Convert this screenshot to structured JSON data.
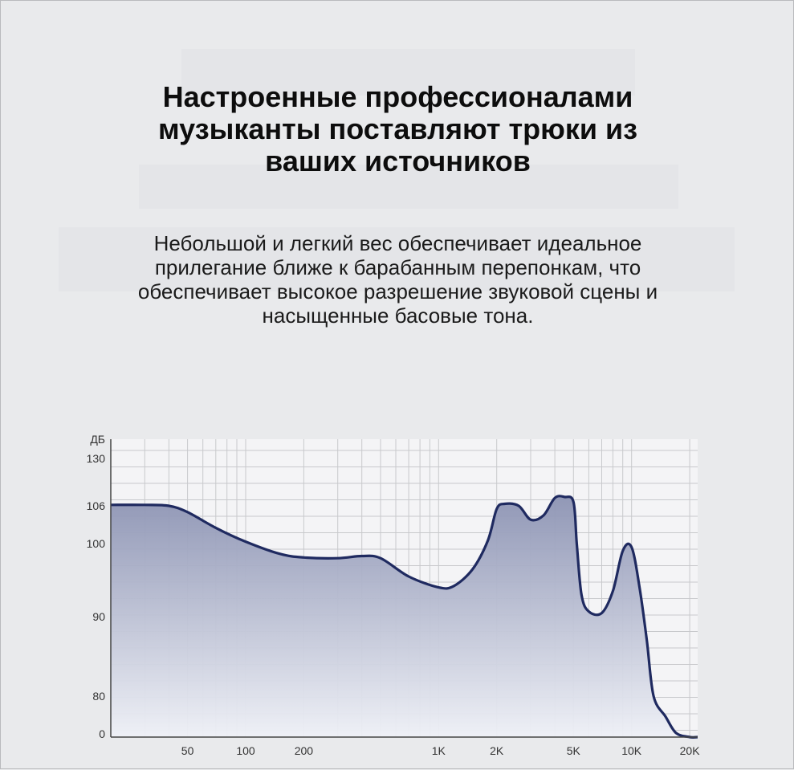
{
  "header": {
    "title_lines": [
      "Настроенные профессионалами",
      "музыканты поставляют трюки из",
      "ваших источников"
    ],
    "description_lines": [
      "Небольшой и легкий вес обеспечивает идеальное",
      "прилегание ближе к барабанным перепонкам, что",
      "обеспечивает высокое разрешение звуковой сцены и",
      "насыщенные басовые тона."
    ]
  },
  "chart_data": {
    "type": "area",
    "xlabel": "",
    "ylabel": "ДБ",
    "x_scale": "log",
    "xlim": [
      20,
      22000
    ],
    "x_ticks": [
      {
        "value": 50,
        "label": "50"
      },
      {
        "value": 100,
        "label": "100"
      },
      {
        "value": 200,
        "label": "200"
      },
      {
        "value": 1000,
        "label": "1K"
      },
      {
        "value": 2000,
        "label": "2K"
      },
      {
        "value": 5000,
        "label": "5K"
      },
      {
        "value": 10000,
        "label": "10K"
      },
      {
        "value": 20000,
        "label": "20K"
      }
    ],
    "y_ticks": [
      "ДБ",
      "130",
      "106",
      "100",
      "90",
      "80",
      "0"
    ],
    "grid": true,
    "colors": {
      "line": "#1f2a60",
      "fill_top": "#8c93b3",
      "fill_bottom": "#eef0f6",
      "grid": "#c8c9cc"
    },
    "series": [
      {
        "x": [
          20,
          30,
          40,
          50,
          70,
          100,
          150,
          200,
          300,
          400,
          500,
          700,
          1000,
          1200,
          1500,
          1800,
          2000,
          2200,
          2600,
          3000,
          3500,
          4000,
          4500,
          5000,
          5200,
          5500,
          6000,
          7000,
          8000,
          9000,
          10000,
          11000,
          12000,
          13000,
          15000,
          17000,
          20000,
          22000
        ],
        "y": [
          106.5,
          106.5,
          106.0,
          105.0,
          102.5,
          100.3,
          98.6,
          98.1,
          98.0,
          98.3,
          98.0,
          95.5,
          94.0,
          94.2,
          96.5,
          100.5,
          105.5,
          107.0,
          106.0,
          103.8,
          104.5,
          110.0,
          110.5,
          108.0,
          100.0,
          93.0,
          90.7,
          90.5,
          93.5,
          99.0,
          99.5,
          94.0,
          87.0,
          80.0,
          75.0,
          71.0,
          70.0,
          70.0
        ]
      }
    ]
  }
}
